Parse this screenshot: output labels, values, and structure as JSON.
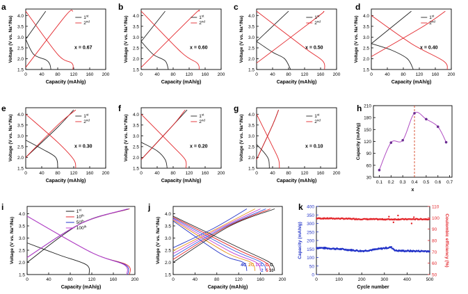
{
  "chart_data": [
    {
      "id": "a",
      "type": "line",
      "panel_label": "a",
      "annotation": "x = 0.67",
      "xlabel": "Capacity (mAh/g)",
      "ylabel": "Voltage (V vs. Na⁺/Na)",
      "xlim": [
        0,
        200
      ],
      "ylim": [
        1.5,
        4.3
      ],
      "xticks": [
        "0",
        "40",
        "80",
        "120",
        "160",
        "200"
      ],
      "yticks": [
        "1.5",
        "2.0",
        "2.5",
        "3.0",
        "3.5",
        "4.0"
      ],
      "legend": [
        "1st",
        "2nd"
      ],
      "series": [
        {
          "name": "1st charge",
          "color": "#222222",
          "x": [
            0,
            50
          ],
          "y": [
            2.9,
            4.2
          ]
        },
        {
          "name": "1st discharge",
          "color": "#222222",
          "x": [
            0,
            20,
            50,
            60,
            63
          ],
          "y": [
            2.9,
            2.2,
            1.95,
            1.75,
            1.5
          ]
        },
        {
          "name": "2nd charge",
          "color": "#e3262b",
          "x": [
            0,
            100,
            118
          ],
          "y": [
            1.6,
            4.0,
            4.2
          ]
        },
        {
          "name": "2nd discharge",
          "color": "#e3262b",
          "x": [
            0,
            80,
            115,
            118
          ],
          "y": [
            4.2,
            2.2,
            1.8,
            1.5
          ]
        }
      ]
    },
    {
      "id": "b",
      "type": "line",
      "panel_label": "b",
      "annotation": "x = 0.60",
      "xlabel": "Capacity (mAh/g)",
      "ylabel": "Voltage (V vs. Na⁺/Na)",
      "xlim": [
        0,
        200
      ],
      "ylim": [
        1.5,
        4.3
      ],
      "xticks": [
        "0",
        "40",
        "80",
        "120",
        "160",
        "200"
      ],
      "yticks": [
        "1.5",
        "2.0",
        "2.5",
        "3.0",
        "3.5",
        "4.0"
      ],
      "legend": [
        "1st",
        "2nd"
      ],
      "series": [
        {
          "name": "1st charge",
          "color": "#222222",
          "x": [
            0,
            60
          ],
          "y": [
            2.8,
            4.2
          ]
        },
        {
          "name": "1st discharge",
          "color": "#222222",
          "x": [
            0,
            30,
            60,
            68
          ],
          "y": [
            2.8,
            2.2,
            1.9,
            1.5
          ]
        },
        {
          "name": "2nd charge",
          "color": "#e3262b",
          "x": [
            0,
            130,
            145
          ],
          "y": [
            1.6,
            4.0,
            4.2
          ]
        },
        {
          "name": "2nd discharge",
          "color": "#e3262b",
          "x": [
            0,
            100,
            140,
            145
          ],
          "y": [
            4.2,
            2.3,
            1.8,
            1.5
          ]
        }
      ]
    },
    {
      "id": "c",
      "type": "line",
      "panel_label": "c",
      "annotation": "x = 0.50",
      "xlabel": "Capacity (mAh/g)",
      "ylabel": "Voltage (V vs. Na⁺/Na)",
      "xlim": [
        0,
        200
      ],
      "ylim": [
        1.5,
        4.3
      ],
      "xticks": [
        "0",
        "40",
        "80",
        "120",
        "160",
        "200"
      ],
      "yticks": [
        "1.5",
        "2.0",
        "2.5",
        "3.0",
        "3.5",
        "4.0"
      ],
      "legend": [
        "1st",
        "2nd"
      ],
      "series": [
        {
          "name": "1st charge",
          "color": "#222222",
          "x": [
            0,
            80
          ],
          "y": [
            2.8,
            4.2
          ]
        },
        {
          "name": "1st discharge",
          "color": "#222222",
          "x": [
            0,
            40,
            70,
            85
          ],
          "y": [
            2.8,
            2.3,
            2.0,
            1.5
          ]
        },
        {
          "name": "2nd charge",
          "color": "#e3262b",
          "x": [
            0,
            150,
            168
          ],
          "y": [
            1.8,
            3.9,
            4.2
          ]
        },
        {
          "name": "2nd discharge",
          "color": "#e3262b",
          "x": [
            0,
            120,
            165,
            170
          ],
          "y": [
            4.2,
            2.5,
            1.9,
            1.5
          ]
        }
      ]
    },
    {
      "id": "d",
      "type": "line",
      "panel_label": "d",
      "annotation": "x = 0.40",
      "xlabel": "Capacity (mAh/g)",
      "ylabel": "Voltage (V vs. Na⁺/Na)",
      "xlim": [
        0,
        200
      ],
      "ylim": [
        1.5,
        4.3
      ],
      "xticks": [
        "0",
        "40",
        "80",
        "120",
        "160",
        "200"
      ],
      "yticks": [
        "1.5",
        "2.0",
        "2.5",
        "3.0",
        "3.5",
        "4.0"
      ],
      "legend": [
        "1st",
        "2nd"
      ],
      "series": [
        {
          "name": "1st charge",
          "color": "#222222",
          "x": [
            0,
            100
          ],
          "y": [
            2.7,
            4.2
          ]
        },
        {
          "name": "1st discharge",
          "color": "#222222",
          "x": [
            0,
            50,
            90,
            105
          ],
          "y": [
            2.7,
            2.4,
            2.0,
            1.5
          ]
        },
        {
          "name": "2nd charge",
          "color": "#e3262b",
          "x": [
            0,
            130,
            185
          ],
          "y": [
            2.1,
            3.5,
            4.2
          ]
        },
        {
          "name": "2nd discharge",
          "color": "#e3262b",
          "x": [
            0,
            100,
            180,
            190
          ],
          "y": [
            4.0,
            2.7,
            1.9,
            1.5
          ]
        }
      ]
    },
    {
      "id": "e",
      "type": "line",
      "panel_label": "e",
      "annotation": "x = 0.30",
      "xlabel": "Capacity (mAh/g)",
      "ylabel": "Voltage (V vs. Na⁺/Na)",
      "xlim": [
        0,
        200
      ],
      "ylim": [
        1.5,
        4.3
      ],
      "xticks": [
        "0",
        "40",
        "80",
        "120",
        "160",
        "200"
      ],
      "yticks": [
        "1.5",
        "2.0",
        "2.5",
        "3.0",
        "3.5",
        "4.0"
      ],
      "legend": [
        "1st",
        "2nd"
      ],
      "series": [
        {
          "name": "1st charge",
          "color": "#222222",
          "x": [
            0,
            80,
            120
          ],
          "y": [
            2.0,
            3.4,
            4.2
          ]
        },
        {
          "name": "1st discharge",
          "color": "#222222",
          "x": [
            0,
            40,
            75,
            80
          ],
          "y": [
            2.8,
            2.4,
            2.0,
            1.5
          ]
        },
        {
          "name": "2nd charge",
          "color": "#e3262b",
          "x": [
            0,
            80,
            125
          ],
          "y": [
            2.0,
            3.5,
            4.2
          ]
        },
        {
          "name": "2nd discharge",
          "color": "#e3262b",
          "x": [
            0,
            80,
            120,
            125
          ],
          "y": [
            4.0,
            2.7,
            1.9,
            1.5
          ]
        }
      ]
    },
    {
      "id": "f",
      "type": "line",
      "panel_label": "f",
      "annotation": "x = 0.20",
      "xlabel": "Capacity (mAh/g)",
      "ylabel": "Voltage (V vs. Na⁺/Na)",
      "xlim": [
        0,
        200
      ],
      "ylim": [
        1.5,
        4.3
      ],
      "xticks": [
        "0",
        "40",
        "80",
        "120",
        "160",
        "200"
      ],
      "yticks": [
        "1.5",
        "2.0",
        "2.5",
        "3.0",
        "3.5",
        "4.0"
      ],
      "legend": [
        "1st",
        "2nd"
      ],
      "series": [
        {
          "name": "1st charge",
          "color": "#222222",
          "x": [
            0,
            80,
            115
          ],
          "y": [
            1.9,
            3.5,
            4.2
          ]
        },
        {
          "name": "1st discharge",
          "color": "#222222",
          "x": [
            0,
            40,
            60,
            65
          ],
          "y": [
            2.7,
            2.3,
            1.9,
            1.5
          ]
        },
        {
          "name": "2nd charge",
          "color": "#e3262b",
          "x": [
            0,
            80,
            110
          ],
          "y": [
            1.9,
            3.5,
            4.2
          ]
        },
        {
          "name": "2nd discharge",
          "color": "#e3262b",
          "x": [
            0,
            80,
            110,
            112
          ],
          "y": [
            4.0,
            2.5,
            1.9,
            1.5
          ]
        }
      ]
    },
    {
      "id": "g",
      "type": "line",
      "panel_label": "g",
      "annotation": "x = 0.10",
      "xlabel": "Capacity (mAh/g)",
      "ylabel": "Voltage (V vs. Na⁺/Na)",
      "xlim": [
        0,
        200
      ],
      "ylim": [
        1.5,
        4.3
      ],
      "xticks": [
        "0",
        "40",
        "80",
        "120",
        "160",
        "200"
      ],
      "yticks": [
        "1.5",
        "2.0",
        "2.5",
        "3.0",
        "3.5",
        "4.0"
      ],
      "legend": [
        "1st",
        "2nd"
      ],
      "series": [
        {
          "name": "1st charge",
          "color": "#222222",
          "x": [
            0,
            40,
            55
          ],
          "y": [
            1.9,
            3.5,
            4.2
          ]
        },
        {
          "name": "1st discharge",
          "color": "#222222",
          "x": [
            0,
            20,
            30,
            32
          ],
          "y": [
            2.6,
            2.2,
            1.9,
            1.5
          ]
        },
        {
          "name": "2nd charge",
          "color": "#e3262b",
          "x": [
            0,
            40,
            55
          ],
          "y": [
            1.9,
            3.5,
            4.2
          ]
        },
        {
          "name": "2nd discharge",
          "color": "#e3262b",
          "x": [
            0,
            40,
            55,
            57
          ],
          "y": [
            4.0,
            2.5,
            1.9,
            1.5
          ]
        }
      ]
    },
    {
      "id": "h",
      "type": "line",
      "panel_label": "h",
      "xlabel": "x",
      "ylabel": "Capacity (mAh/g)",
      "xlim": [
        0.05,
        0.72
      ],
      "ylim": [
        30,
        210
      ],
      "xticks": [
        "0.1",
        "0.2",
        "0.3",
        "0.4",
        "0.5",
        "0.6",
        "0.7"
      ],
      "yticks": [
        "30",
        "60",
        "90",
        "120",
        "150",
        "180",
        "210"
      ],
      "x": [
        0.1,
        0.2,
        0.3,
        0.4,
        0.5,
        0.6,
        0.67
      ],
      "values": [
        48,
        117,
        123,
        191,
        176,
        157,
        118
      ],
      "marker_color": "#6a2c91",
      "line_color": "#b04cc2",
      "reference_line_x": 0.4,
      "reference_line_color": "#d64524"
    },
    {
      "id": "i",
      "type": "line",
      "panel_label": "i",
      "xlabel": "Capacity (mAh/g)",
      "ylabel": "Voltage (V vs. Na⁺/Na)",
      "xlim": [
        0,
        200
      ],
      "ylim": [
        1.5,
        4.3
      ],
      "xticks": [
        "0",
        "40",
        "80",
        "120",
        "160",
        "200"
      ],
      "yticks": [
        "1.5",
        "2.0",
        "2.5",
        "3.0",
        "3.5",
        "4.0"
      ],
      "legend": [
        "1st",
        "10th",
        "50th",
        "100th"
      ],
      "series": [
        {
          "name": "1st",
          "color": "#1a1a1a",
          "charge": [
            [
              0,
              2.0
            ],
            [
              100,
              3.6
            ],
            [
              190,
              4.2
            ]
          ],
          "discharge": [
            [
              0,
              2.8
            ],
            [
              60,
              2.3
            ],
            [
              110,
              1.9
            ],
            [
              115,
              1.5
            ]
          ]
        },
        {
          "name": "10th",
          "color": "#e3262b",
          "charge": [
            [
              0,
              2.2
            ],
            [
              100,
              3.6
            ],
            [
              190,
              4.2
            ]
          ],
          "discharge": [
            [
              0,
              3.9
            ],
            [
              120,
              2.4
            ],
            [
              185,
              1.9
            ],
            [
              190,
              1.5
            ]
          ]
        },
        {
          "name": "50th",
          "color": "#2233c8",
          "charge": [
            [
              0,
              2.2
            ],
            [
              100,
              3.6
            ],
            [
              188,
              4.2
            ]
          ],
          "discharge": [
            [
              0,
              3.9
            ],
            [
              120,
              2.4
            ],
            [
              182,
              1.9
            ],
            [
              187,
              1.5
            ]
          ]
        },
        {
          "name": "100th",
          "color": "#c23fd0",
          "charge": [
            [
              0,
              2.2
            ],
            [
              100,
              3.6
            ],
            [
              186,
              4.2
            ]
          ],
          "discharge": [
            [
              0,
              3.9
            ],
            [
              120,
              2.4
            ],
            [
              180,
              1.9
            ],
            [
              185,
              1.5
            ]
          ]
        }
      ]
    },
    {
      "id": "j",
      "type": "line",
      "panel_label": "j",
      "xlabel": "Capacity (mAh/g)",
      "ylabel": "Voltage (V vs. Na⁺/Na)",
      "xlim": [
        0,
        200
      ],
      "ylim": [
        1.5,
        4.3
      ],
      "xticks": [
        "0",
        "40",
        "80",
        "120",
        "160",
        "200"
      ],
      "yticks": [
        "1.5",
        "2.0",
        "2.5",
        "3.0",
        "3.5",
        "4.0"
      ],
      "labels": [
        "4C",
        "2C",
        "1C",
        "C",
        "C",
        "C"
      ],
      "sub_labels": [
        "",
        "",
        "",
        "2",
        "5",
        "10"
      ],
      "series": [
        {
          "name": "4C",
          "color": "#2233c8",
          "max": 135
        },
        {
          "name": "2C",
          "color": "#e8941a",
          "max": 150
        },
        {
          "name": "1C",
          "color": "#c23fd0",
          "max": 160
        },
        {
          "name": "C/2",
          "color": "#3355e0",
          "max": 170
        },
        {
          "name": "C/5",
          "color": "#e3262b",
          "max": 178
        },
        {
          "name": "C/10",
          "color": "#222222",
          "max": 186
        }
      ]
    },
    {
      "id": "k",
      "type": "scatter",
      "panel_label": "k",
      "xlabel": "Cycle number",
      "ylabel": "Capacity (mAh/g)",
      "y2label": "Coulombic efficiency (%)",
      "xlim": [
        0,
        500
      ],
      "ylim": [
        0,
        400
      ],
      "y2lim": [
        50,
        110
      ],
      "xticks": [
        "0",
        "100",
        "200",
        "300",
        "400",
        "500"
      ],
      "yticks": [
        "0",
        "50",
        "100",
        "150",
        "200",
        "250",
        "300",
        "350",
        "400"
      ],
      "y2ticks": [
        "50",
        "60",
        "70",
        "80",
        "90",
        "100",
        "110"
      ],
      "capacity_color": "#2233c8",
      "efficiency_color": "#e3262b",
      "capacity_profile": [
        [
          0,
          158
        ],
        [
          100,
          150
        ],
        [
          200,
          138
        ],
        [
          250,
          145
        ],
        [
          300,
          155
        ],
        [
          330,
          160
        ],
        [
          350,
          140
        ],
        [
          420,
          138
        ],
        [
          500,
          137
        ]
      ],
      "efficiency_profile": [
        [
          0,
          99.5
        ],
        [
          100,
          99.3
        ],
        [
          200,
          98.8
        ],
        [
          300,
          98.6
        ],
        [
          400,
          98.7
        ],
        [
          500,
          98.8
        ]
      ],
      "efficiency_outliers": [
        [
          320,
          101
        ],
        [
          340,
          96
        ],
        [
          360,
          102
        ],
        [
          420,
          95
        ],
        [
          430,
          100.5
        ]
      ]
    }
  ]
}
